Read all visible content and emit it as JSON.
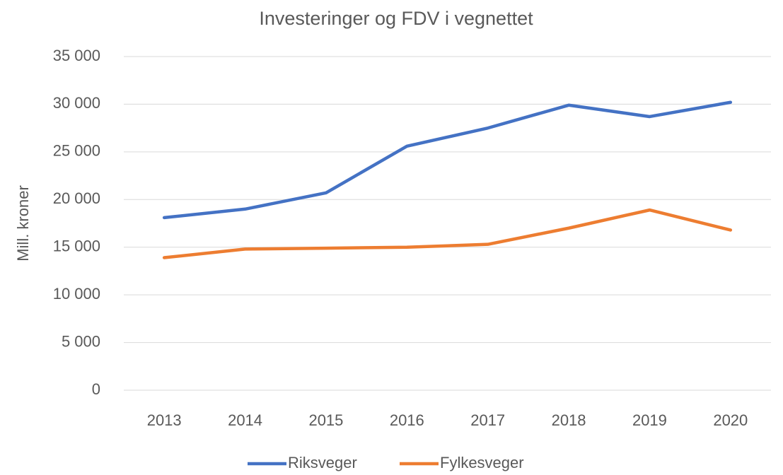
{
  "chart_data": {
    "type": "line",
    "title": "Investeringer og FDV i vegnettet",
    "y_label": "Mill. kroner",
    "categories": [
      "2013",
      "2014",
      "2015",
      "2016",
      "2017",
      "2018",
      "2019",
      "2020"
    ],
    "series": [
      {
        "name": "Riksveger",
        "color": "#4472c4",
        "values": [
          18100,
          19000,
          20700,
          25600,
          27500,
          29900,
          28700,
          30200
        ]
      },
      {
        "name": "Fylkesveger",
        "color": "#ed7d31",
        "values": [
          13900,
          14800,
          14900,
          15000,
          15300,
          17000,
          18900,
          16800
        ]
      }
    ],
    "ylim": [
      0,
      35000
    ],
    "yticks": [
      0,
      {
        "value": 5000,
        "label": "5 000"
      },
      {
        "value": 10000,
        "label": "10 000"
      },
      {
        "value": 15000,
        "label": "15 000"
      },
      {
        "value": 20000,
        "label": "20 000"
      },
      {
        "value": 25000,
        "label": "25 000"
      },
      {
        "value": 30000,
        "label": "30 000"
      },
      {
        "value": 35000,
        "label": "35 000"
      }
    ],
    "grid": true,
    "legend": "bottom"
  }
}
